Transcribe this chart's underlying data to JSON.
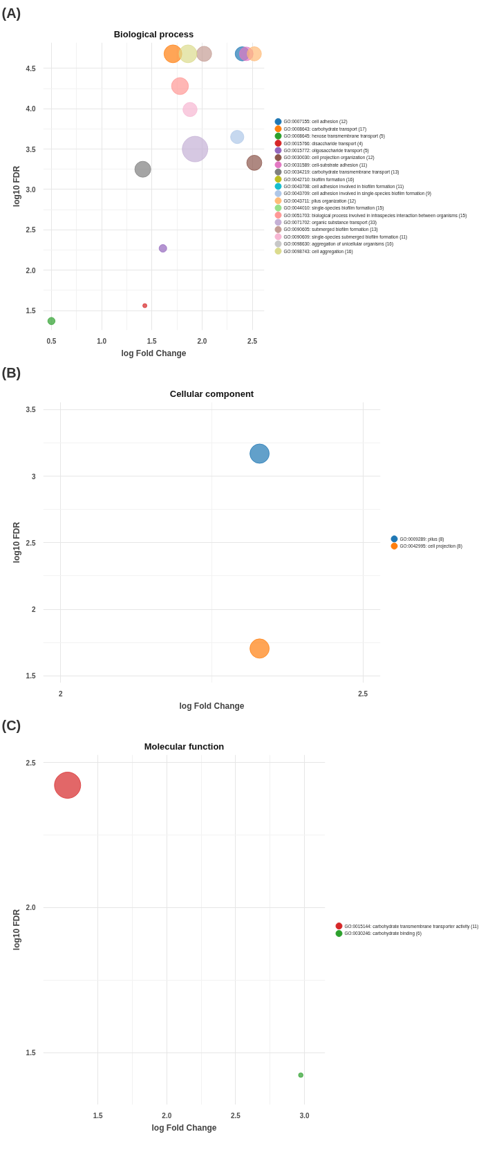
{
  "chart_data": [
    {
      "type": "bubble",
      "title": "Biological process",
      "xlabel": "log Fold Change",
      "ylabel": "log10 FDR",
      "annotations": [
        "(A)"
      ],
      "marker": "circle",
      "grid": true,
      "legend": "right",
      "xlim": [
        0.418,
        2.62
      ],
      "xticks": [
        0.5,
        {
          "value": 1,
          "label": "1.0"
        },
        1.5,
        {
          "value": 2,
          "label": "2.0"
        },
        2.5
      ],
      "ylim": [
        1.256,
        4.82
      ],
      "yticks": [
        1.5,
        {
          "value": 2,
          "label": "2.0"
        },
        2.5,
        {
          "value": 3,
          "label": "3.0"
        },
        3.5,
        {
          "value": 4,
          "label": "4.0"
        },
        4.5
      ],
      "series": [
        {
          "name": "GO:0007155: cell adhesion (12)",
          "color": "#1f77b4",
          "x": [
            2.4
          ],
          "values": [
            4.68
          ],
          "sizes": [
            0.31
          ]
        },
        {
          "name": "GO:0008643: carbohydrate transport (17)",
          "color": "#ff7f0e",
          "x": [
            1.71
          ],
          "values": [
            4.68
          ],
          "sizes": [
            0.49
          ]
        },
        {
          "name": "GO:0008645: hexose transmembrane transport (5)",
          "color": "#2ca02c",
          "x": [
            0.5
          ],
          "values": [
            1.37
          ],
          "sizes": [
            0.08
          ]
        },
        {
          "name": "GO:0015766: disaccharide transport (4)",
          "color": "#d62728",
          "x": [
            1.43
          ],
          "values": [
            1.56
          ],
          "sizes": [
            0.026
          ]
        },
        {
          "name": "GO:0015772: oligosaccharide transport (5)",
          "color": "#9467bd",
          "x": [
            1.61
          ],
          "values": [
            2.27
          ],
          "sizes": [
            0.09
          ]
        },
        {
          "name": "GO:0030030: cell projection organization (12)",
          "color": "#8c564b",
          "x": [
            2.52
          ],
          "values": [
            3.33
          ],
          "sizes": [
            0.35
          ]
        },
        {
          "name": "GO:0031589: cell-substrate adhesion (11)",
          "color": "#e377c2",
          "x": [
            2.44
          ],
          "values": [
            4.68
          ],
          "sizes": [
            0.29
          ]
        },
        {
          "name": "GO:0034219: carbohydrate transmembrane transport (13)",
          "color": "#7f7f7f",
          "x": [
            1.41
          ],
          "values": [
            3.25
          ],
          "sizes": [
            0.39
          ]
        },
        {
          "name": "GO:0042710: biofilm formation (16)",
          "color": "#bcbd22",
          "x": [
            null
          ],
          "values": [
            null
          ],
          "sizes": [
            null
          ]
        },
        {
          "name": "GO:0043708: cell adhesion involved in biofilm formation (11)",
          "color": "#17becf",
          "x": [
            null
          ],
          "values": [
            null
          ],
          "sizes": [
            null
          ]
        },
        {
          "name": "GO:0043709: cell adhesion involved in single-species biofilm formation (9)",
          "color": "#aec7e8",
          "x": [
            2.35
          ],
          "values": [
            3.65
          ],
          "sizes": [
            0.27
          ]
        },
        {
          "name": "GO:0043711: pilus organization (12)",
          "color": "#ffbb78",
          "x": [
            2.52
          ],
          "values": [
            4.68
          ],
          "sizes": [
            0.31
          ]
        },
        {
          "name": "GO:0044010: single-species biofilm formation (15)",
          "color": "#98df8a",
          "x": [
            null
          ],
          "values": [
            null
          ],
          "sizes": [
            null
          ]
        },
        {
          "name": "GO:0051703: biological process involved in intraspecies interaction between organisms (15)",
          "color": "#ff9896",
          "x": [
            1.78
          ],
          "values": [
            4.28
          ],
          "sizes": [
            0.44
          ]
        },
        {
          "name": "GO:0071702: organic substance transport (33)",
          "color": "#c5b0d5",
          "x": [
            1.93
          ],
          "values": [
            3.5
          ],
          "sizes": [
            1
          ]
        },
        {
          "name": "GO:0090605: submerged biofilm formation (13)",
          "color": "#c49c94",
          "x": [
            2.02
          ],
          "values": [
            4.68
          ],
          "sizes": [
            0.35
          ]
        },
        {
          "name": "GO:0090609: single-species submerged biofilm formation (11)",
          "color": "#f7b6d2",
          "x": [
            1.88
          ],
          "values": [
            3.99
          ],
          "sizes": [
            0.31
          ]
        },
        {
          "name": "GO:0098630: aggregation of unicellular organisms (16)",
          "color": "#c7c7c7",
          "x": [
            null
          ],
          "values": [
            null
          ],
          "sizes": [
            null
          ]
        },
        {
          "name": "GO:0098743: cell aggregation (16)",
          "color": "#dbdb8d",
          "x": [
            1.86
          ],
          "values": [
            4.68
          ],
          "sizes": [
            0.49
          ]
        }
      ]
    },
    {
      "type": "bubble",
      "title": "Cellular component",
      "xlabel": "log Fold Change",
      "ylabel": "log10 FDR",
      "annotations": [
        "(B)"
      ],
      "marker": "circle",
      "grid": true,
      "legend": "right",
      "xlim": [
        1.971,
        2.529
      ],
      "xticks": [
        2,
        2.5
      ],
      "ylim": [
        1.447,
        3.556
      ],
      "yticks": [
        1.5,
        2,
        2.5,
        3,
        3.5
      ],
      "series": [
        {
          "name": "GO:0009289: pilus (8)",
          "color": "#1f77b4",
          "x": [
            2.329
          ],
          "values": [
            3.169
          ],
          "sizes": [
            1
          ]
        },
        {
          "name": "GO:0042995: cell projection (8)",
          "color": "#ff7f0e",
          "x": [
            2.329
          ],
          "values": [
            1.705
          ],
          "sizes": [
            1
          ]
        }
      ]
    },
    {
      "type": "bubble",
      "title": "Molecular function",
      "xlabel": "log Fold Change",
      "ylabel": "log10 FDR",
      "annotations": [
        "(C)"
      ],
      "marker": "circle",
      "grid": true,
      "legend": "right",
      "xlim": [
        1.103,
        3.15
      ],
      "xticks": [
        1.5,
        {
          "value": 2,
          "label": "2.0"
        },
        2.5,
        {
          "value": 3,
          "label": "3.0"
        }
      ],
      "ylim": [
        1.32,
        2.527
      ],
      "yticks": [
        1.5,
        {
          "value": 2,
          "label": "2.0"
        },
        2.5
      ],
      "series": [
        {
          "name": "GO:0015144: carbohydrate transmembrane transporter activity (11)",
          "color": "#d62728",
          "x": [
            1.28
          ],
          "values": [
            2.422
          ],
          "sizes": [
            1
          ]
        },
        {
          "name": "GO:0030246: carbohydrate binding (6)",
          "color": "#2ca02c",
          "x": [
            2.973
          ],
          "values": [
            1.422
          ],
          "sizes": [
            0.03
          ]
        }
      ]
    }
  ]
}
